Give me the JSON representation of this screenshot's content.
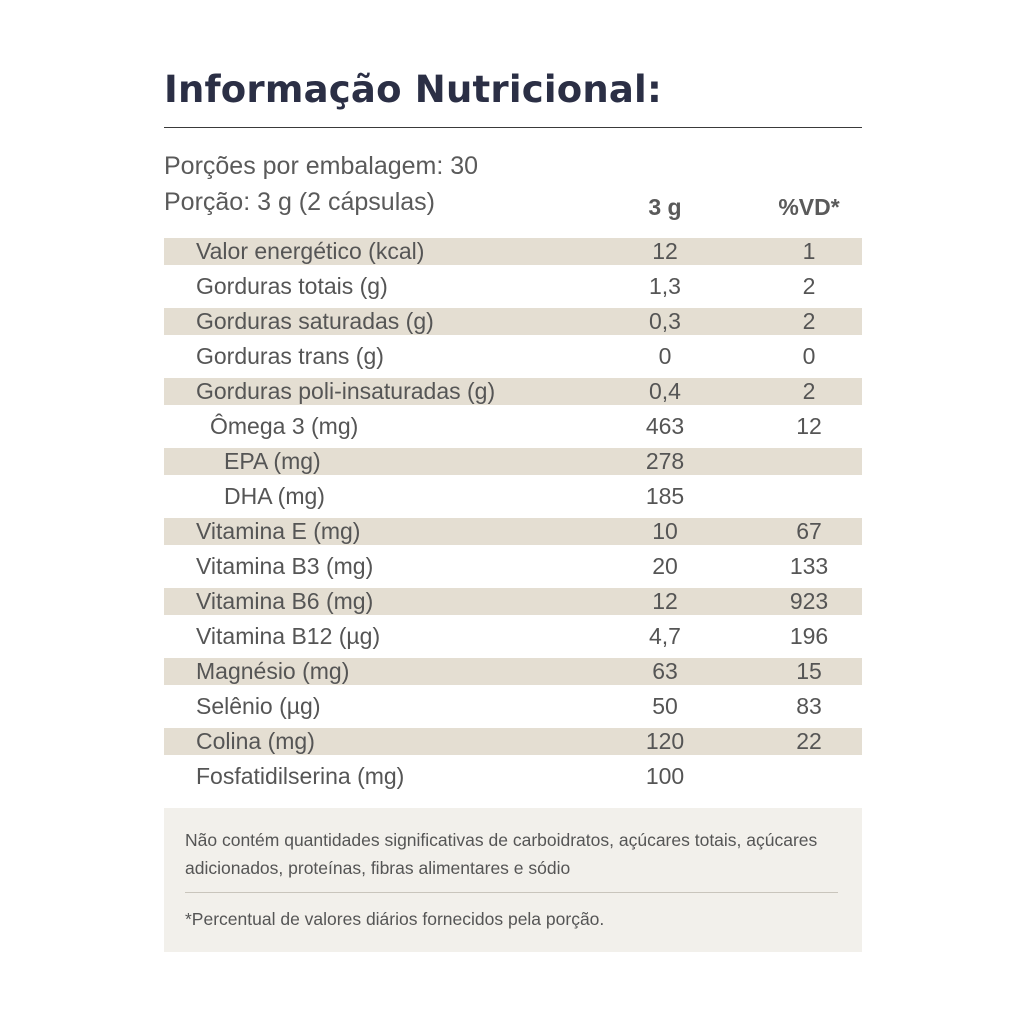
{
  "title": "Informação Nutricional:",
  "servings_per_package": "Porções por embalagem: 30",
  "serving_size": "Porção: 3 g (2 cápsulas)",
  "columns": {
    "amount": "3 g",
    "daily_value": "%VD*"
  },
  "colors": {
    "title": "#2b2f45",
    "row_band": "#e4ded2",
    "footnote_bg": "#f2f0eb"
  },
  "rows": [
    {
      "label": "Valor energético (kcal)",
      "amount": "12",
      "vd": "1"
    },
    {
      "label": "Gorduras totais (g)",
      "amount": "1,3",
      "vd": "2"
    },
    {
      "label": "Gorduras saturadas (g)",
      "amount": "0,3",
      "vd": "2"
    },
    {
      "label": "Gorduras trans (g)",
      "amount": "0",
      "vd": "0"
    },
    {
      "label": "Gorduras poli-insaturadas (g)",
      "amount": "0,4",
      "vd": "2"
    },
    {
      "label": "Ômega 3 (mg)",
      "amount": "463",
      "vd": "12"
    },
    {
      "label": "EPA (mg)",
      "amount": "278",
      "vd": ""
    },
    {
      "label": "DHA (mg)",
      "amount": "185",
      "vd": ""
    },
    {
      "label": "Vitamina E (mg)",
      "amount": "10",
      "vd": "67"
    },
    {
      "label": "Vitamina B3 (mg)",
      "amount": "20",
      "vd": "133"
    },
    {
      "label": "Vitamina B6 (mg)",
      "amount": "12",
      "vd": "923"
    },
    {
      "label": "Vitamina B12 (µg)",
      "amount": "4,7",
      "vd": "196"
    },
    {
      "label": "Magnésio (mg)",
      "amount": "63",
      "vd": "15"
    },
    {
      "label": "Selênio (µg)",
      "amount": "50",
      "vd": "83"
    },
    {
      "label": "Colina (mg)",
      "amount": "120",
      "vd": "22"
    },
    {
      "label": "Fosfatidilserina (mg)",
      "amount": "100",
      "vd": ""
    }
  ],
  "footnotes": {
    "not_significant": "Não contém quantidades significativas de carboidratos, açúcares totais, açúcares adicionados, proteínas, fibras alimentares e sódio",
    "daily_value_note": "*Percentual de valores diários fornecidos pela porção."
  }
}
